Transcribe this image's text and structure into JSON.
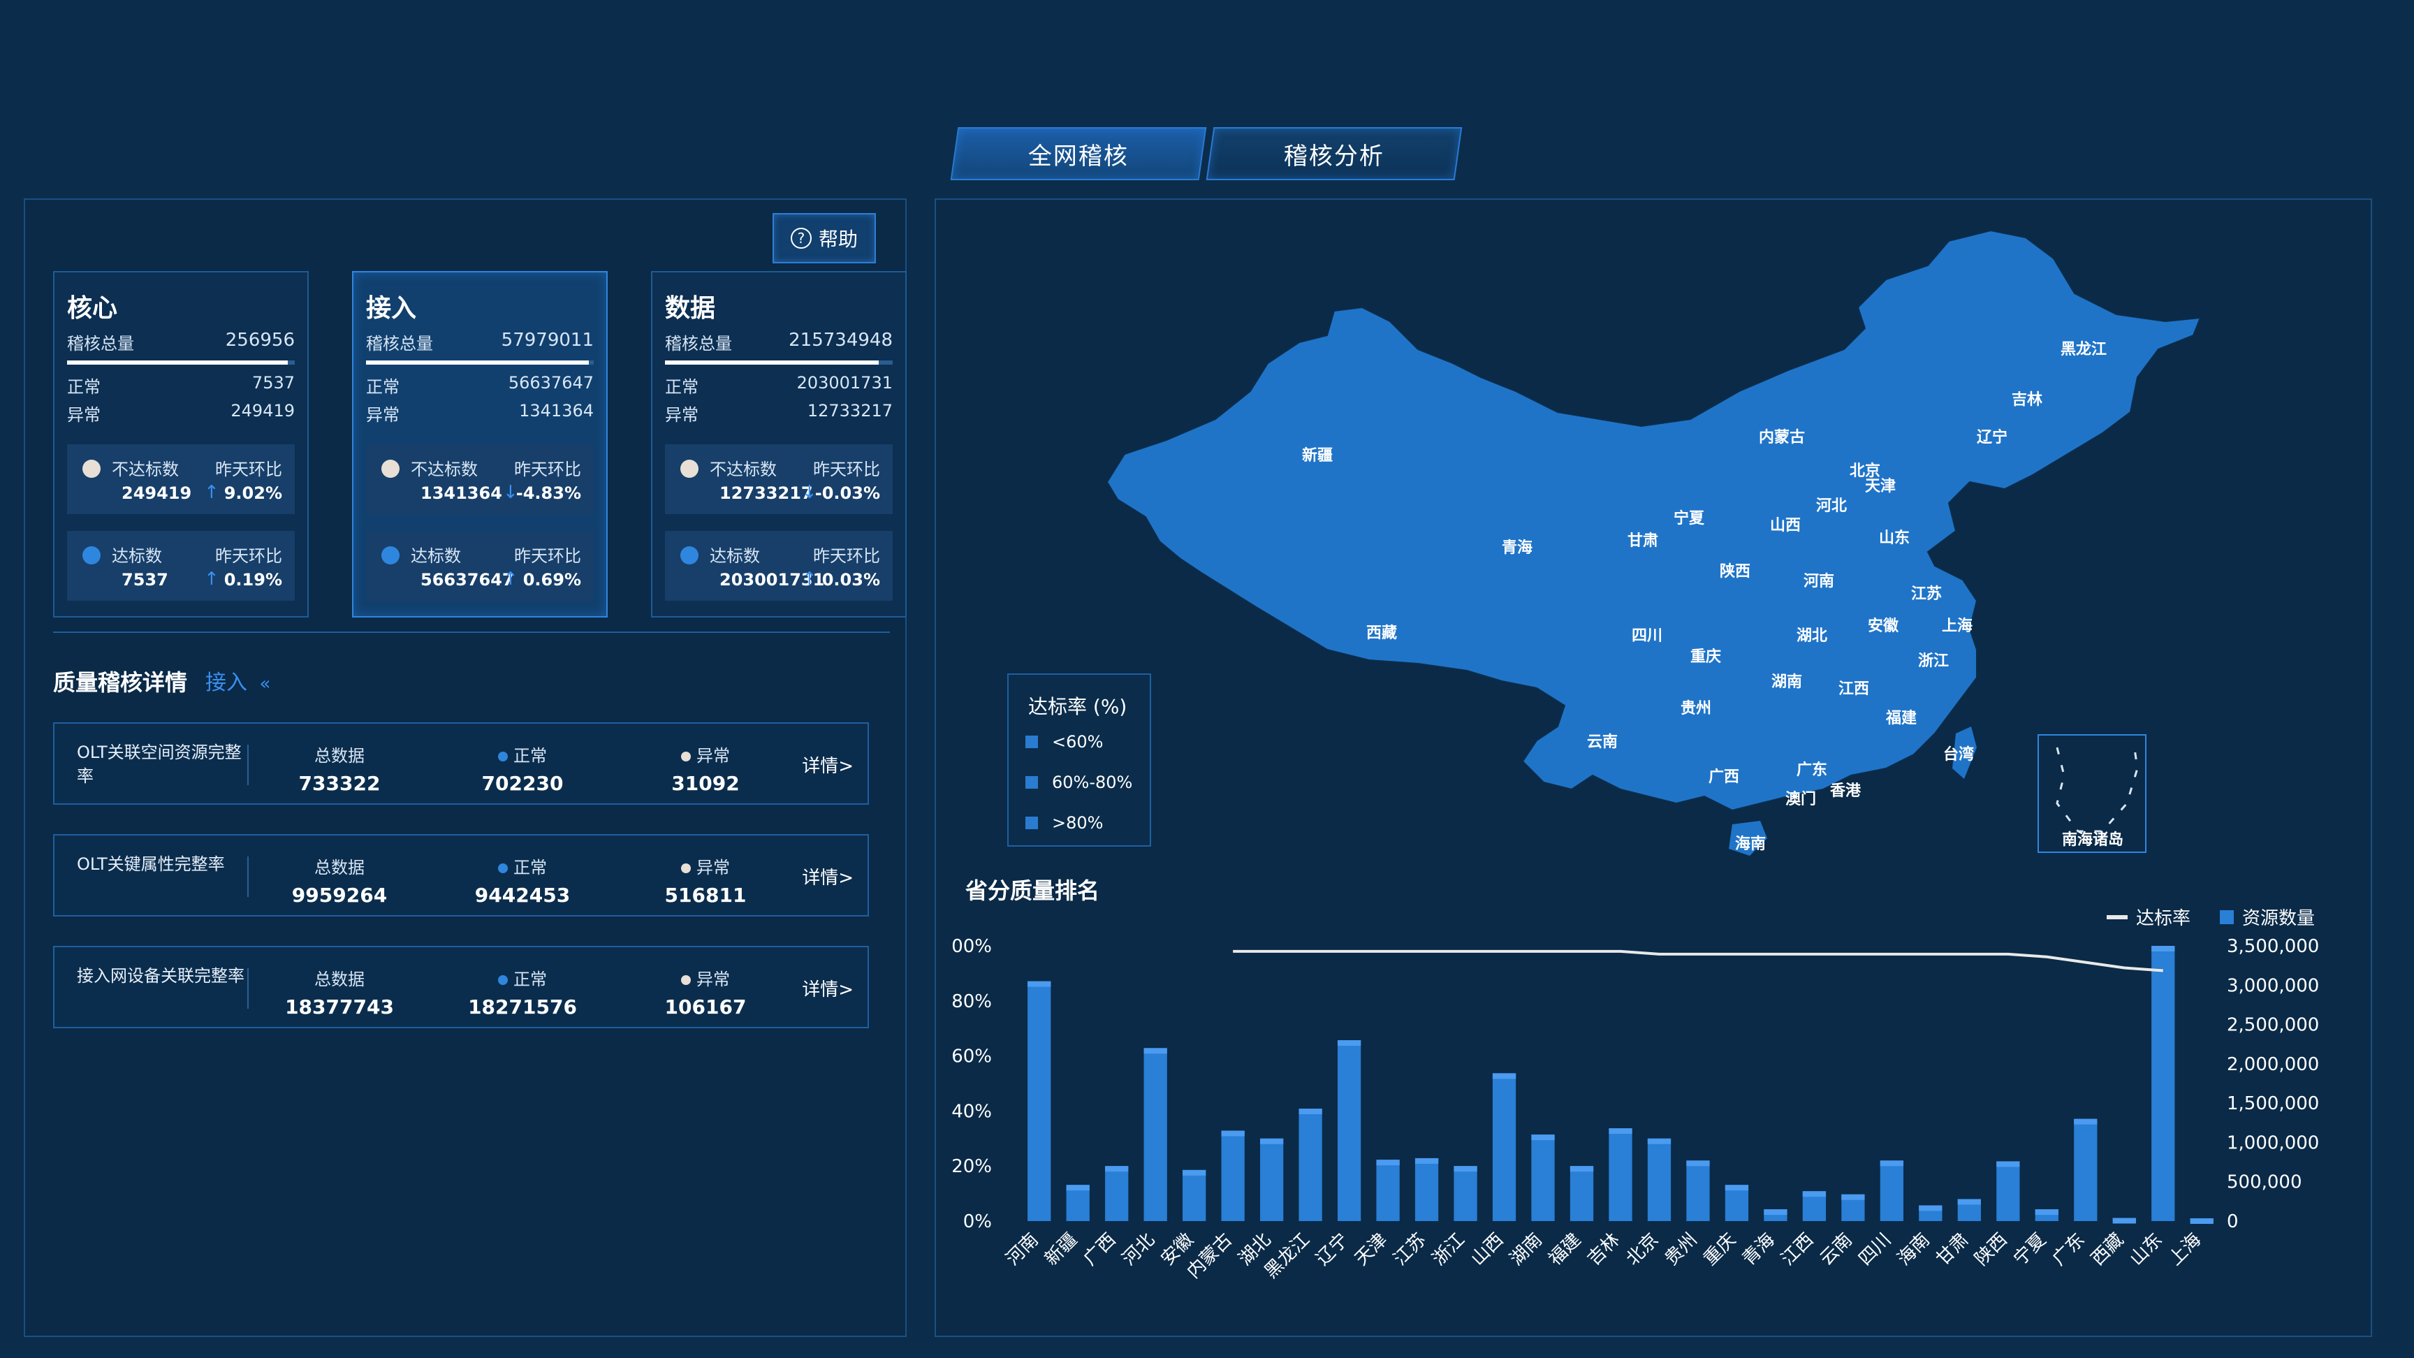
{
  "tabs": [
    {
      "label": "全网稽核",
      "active": true
    },
    {
      "label": "稽核分析",
      "active": false
    }
  ],
  "help": {
    "label": "帮助"
  },
  "cards": [
    {
      "title": "核心",
      "total_label": "稽核总量",
      "total": "256956",
      "normal_label": "正常",
      "normal": "7537",
      "abnormal_label": "异常",
      "abnormal": "249419",
      "bar_fraction": 0.97,
      "sub1": {
        "label": "不达标数",
        "compare_label": "昨天环比",
        "value": "249419",
        "trend": "up",
        "change": "9.02%"
      },
      "sub2": {
        "label": "达标数",
        "compare_label": "昨天环比",
        "value": "7537",
        "trend": "up",
        "change": "0.19%"
      }
    },
    {
      "title": "接入",
      "total_label": "稽核总量",
      "total": "57979011",
      "normal_label": "正常",
      "normal": "56637647",
      "abnormal_label": "异常",
      "abnormal": "1341364",
      "bar_fraction": 0.98,
      "sub1": {
        "label": "不达标数",
        "compare_label": "昨天环比",
        "value": "1341364",
        "trend": "down",
        "change": "-4.83%"
      },
      "sub2": {
        "label": "达标数",
        "compare_label": "昨天环比",
        "value": "56637647",
        "trend": "up",
        "change": "0.69%"
      }
    },
    {
      "title": "数据",
      "total_label": "稽核总量",
      "total": "215734948",
      "normal_label": "正常",
      "normal": "203001731",
      "abnormal_label": "异常",
      "abnormal": "12733217",
      "bar_fraction": 0.94,
      "sub1": {
        "label": "不达标数",
        "compare_label": "昨天环比",
        "value": "12733217",
        "trend": "down",
        "change": "-0.03%"
      },
      "sub2": {
        "label": "达标数",
        "compare_label": "昨天环比",
        "value": "203001731",
        "trend": "up",
        "change": "0.03%"
      }
    }
  ],
  "quality": {
    "title": "质量稽核详情",
    "filter": "接入",
    "filter_icon": "double-chevron-left-icon",
    "rows": [
      {
        "name": "OLT关联空间资源完整率",
        "total_label": "总数据",
        "total": "733322",
        "normal_label": "正常",
        "normal": "702230",
        "abnormal_label": "异常",
        "abnormal": "31092",
        "more": "详情>"
      },
      {
        "name": "OLT关键属性完整率",
        "total_label": "总数据",
        "total": "9959264",
        "normal_label": "正常",
        "normal": "9442453",
        "abnormal_label": "异常",
        "abnormal": "516811",
        "more": "详情>"
      },
      {
        "name": "接入网设备关联完整率",
        "total_label": "总数据",
        "total": "18377743",
        "normal_label": "正常",
        "normal": "18271576",
        "abnormal_label": "异常",
        "abnormal": "106167",
        "more": "详情>"
      }
    ]
  },
  "map": {
    "legend_title": "达标率 (%)",
    "legend_items": [
      "<60%",
      "60%-80%",
      ">80%"
    ],
    "inset_label": "南海诸岛",
    "provinces": [
      "黑龙江",
      "吉林",
      "辽宁",
      "内蒙古",
      "北京",
      "天津",
      "河北",
      "新疆",
      "宁夏",
      "甘肃",
      "山西",
      "山东",
      "青海",
      "陕西",
      "河南",
      "江苏",
      "西藏",
      "四川",
      "湖北",
      "安徽",
      "上海",
      "重庆",
      "浙江",
      "湖南",
      "江西",
      "贵州",
      "福建",
      "云南",
      "台湾",
      "广西",
      "广东",
      "香港",
      "澳门",
      "海南"
    ],
    "fill_color": "#1f74c8"
  },
  "ranking": {
    "title": "省分质量排名",
    "legend_rate": "达标率",
    "legend_count": "资源数量"
  },
  "chart_data": {
    "type": "bar",
    "categories": [
      "河南",
      "新疆",
      "广西",
      "河北",
      "安徽",
      "内蒙古",
      "湖北",
      "黑龙江",
      "辽宁",
      "天津",
      "江苏",
      "浙江",
      "山西",
      "湖南",
      "福建",
      "吉林",
      "北京",
      "贵州",
      "重庆",
      "青海",
      "江西",
      "云南",
      "四川",
      "海南",
      "甘肃",
      "陕西",
      "宁夏",
      "广东",
      "西藏",
      "山东",
      "上海"
    ],
    "series": [
      {
        "name": "资源数量",
        "axis": "right",
        "values": [
          3050000,
          460000,
          700000,
          2200000,
          650000,
          1150000,
          1050000,
          1430000,
          2300000,
          780000,
          800000,
          700000,
          1880000,
          1100000,
          700000,
          1180000,
          1050000,
          770000,
          460000,
          150000,
          380000,
          340000,
          770000,
          200000,
          280000,
          760000,
          150000,
          1300000,
          40000,
          3500000,
          30000
        ]
      },
      {
        "name": "达标率",
        "axis": "left",
        "type": "line",
        "values": [
          null,
          null,
          null,
          null,
          null,
          98,
          98,
          98,
          98,
          98,
          98,
          98,
          98,
          98,
          98,
          98,
          97,
          97,
          97,
          97,
          97,
          97,
          97,
          97,
          97,
          97,
          96,
          94,
          92,
          91,
          null
        ]
      }
    ],
    "yticks_left": [
      "100%",
      "80%",
      "60%",
      "40%",
      "20%",
      "0%"
    ],
    "yticks_right": [
      "3,500,000",
      "3,000,000",
      "2,500,000",
      "2,000,000",
      "1,500,000",
      "1,000,000",
      "500,000",
      "0"
    ],
    "ylim_left": [
      0,
      100
    ],
    "ylim_right": [
      0,
      3500000
    ],
    "legend_position": "top-right",
    "bar_color": "#2a7fd6",
    "line_color": "#e9e9e9"
  }
}
